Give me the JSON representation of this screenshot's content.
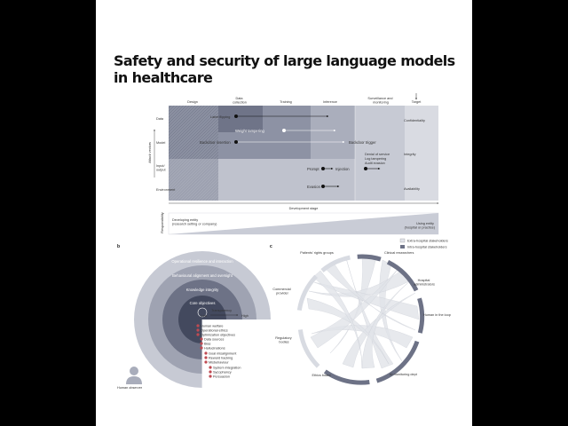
{
  "title": "Safety and security of large language models in healthcare",
  "panel_a": {
    "stages": [
      "Design",
      "Data collection",
      "Training",
      "Inference",
      "Surveillance and monitoring"
    ],
    "target_header": "Target",
    "attack_vectors_label": "Attack vectors",
    "rows": [
      "Data",
      "Model",
      "Input/ output",
      "Environment"
    ],
    "targets": [
      "Confidentiality",
      "Integrity",
      "Availability"
    ],
    "attacks": {
      "label_flipping": "Label flipping",
      "weight_tampering": "Weight tampering",
      "backdoor_insertion": "Backdoor insertion",
      "backdoor_trigger": "Backdoor trigger",
      "prompt": "Prompt",
      "injection": "Injection",
      "evasion": "Evasion",
      "surveillance_list": [
        "Denial of service",
        "Log tampering",
        "Audit evasion"
      ]
    },
    "development_stage_label": "Development stage",
    "responsibility_label": "Responsibility",
    "developing_entity": "Developing entity (research setting or company)",
    "using_entity": "Using entity (hospital or practice)"
  },
  "panel_b": {
    "letter": "b",
    "rings": [
      "Operational resilience and interaction",
      "Behavioural alignment and oversight",
      "Knowledge integrity",
      "Core objectives"
    ],
    "transparency": "Transparency",
    "low": "Low",
    "high": "High",
    "concerns": [
      "Human welfare",
      "Operational ethics",
      "Optimization objectives",
      "Data sources",
      "Bias",
      "Hallucinations",
      "Goal misalignment",
      "Reward hacking",
      "Misbehaviour",
      "System integration",
      "Sycophancy",
      "Persuasion"
    ],
    "observer": "Human observer"
  },
  "panel_c": {
    "letter": "c",
    "legend": [
      "Extra-hospital stakeholders",
      "Intra-hospital stakeholders"
    ],
    "stakeholders": [
      "Patients' rights groups",
      "Clinical researchers",
      "Hospital administrators",
      "Human in the loop",
      "AI monitoring dept",
      "Ethics board",
      "Regulatory bodies",
      "Commercial provider"
    ]
  },
  "colors": {
    "dark": "#43495e",
    "mid": "#6d7286",
    "light": "#a9adbb",
    "paper": "#ffffff",
    "background": "#000000",
    "attack_marker": "#bf4a52"
  }
}
